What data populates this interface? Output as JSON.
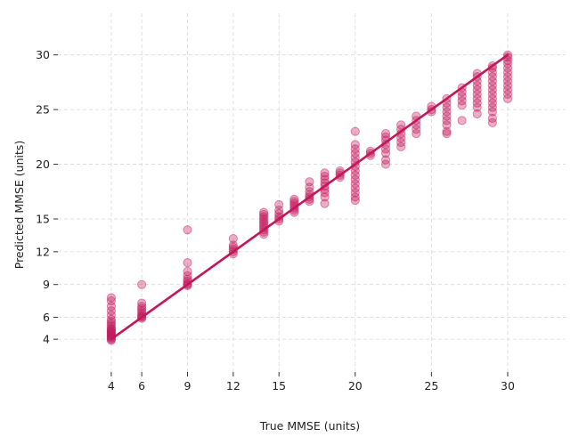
{
  "chart_data": {
    "type": "scatter",
    "title": "",
    "xlabel": "True MMSE (units)",
    "ylabel": "Predicted MMSE (units)",
    "xlim": [
      0.5,
      33.8
    ],
    "ylim": [
      1.0,
      33.8
    ],
    "xticks": [
      4,
      6,
      9,
      12,
      15,
      20,
      25,
      30
    ],
    "yticks": [
      4,
      6,
      9,
      12,
      15,
      20,
      25,
      30
    ],
    "grid": true,
    "color": "#c2185b",
    "series": [
      {
        "kind": "points",
        "points": [
          [
            4,
            3.9
          ],
          [
            4,
            4.0
          ],
          [
            4,
            4.1
          ],
          [
            4,
            4.2
          ],
          [
            4,
            4.3
          ],
          [
            4,
            4.4
          ],
          [
            4,
            4.5
          ],
          [
            4,
            4.6
          ],
          [
            4,
            4.7
          ],
          [
            4,
            4.8
          ],
          [
            4,
            4.9
          ],
          [
            4,
            5.0
          ],
          [
            4,
            5.2
          ],
          [
            4,
            5.4
          ],
          [
            4,
            5.6
          ],
          [
            4,
            5.8
          ],
          [
            4,
            6.2
          ],
          [
            4,
            6.6
          ],
          [
            4,
            7.0
          ],
          [
            4,
            7.5
          ],
          [
            4,
            7.8
          ],
          [
            6,
            5.9
          ],
          [
            6,
            6.0
          ],
          [
            6,
            6.1
          ],
          [
            6,
            6.2
          ],
          [
            6,
            6.4
          ],
          [
            6,
            6.6
          ],
          [
            6,
            6.8
          ],
          [
            6,
            7.0
          ],
          [
            6,
            7.3
          ],
          [
            6,
            9.0
          ],
          [
            9,
            8.9
          ],
          [
            9,
            9.0
          ],
          [
            9,
            9.1
          ],
          [
            9,
            9.3
          ],
          [
            9,
            9.5
          ],
          [
            9,
            9.8
          ],
          [
            9,
            10.2
          ],
          [
            9,
            11.0
          ],
          [
            9,
            14.0
          ],
          [
            12,
            11.8
          ],
          [
            12,
            12.0
          ],
          [
            12,
            12.2
          ],
          [
            12,
            12.4
          ],
          [
            12,
            12.6
          ],
          [
            12,
            13.2
          ],
          [
            14,
            13.6
          ],
          [
            14,
            13.8
          ],
          [
            14,
            14.0
          ],
          [
            14,
            14.2
          ],
          [
            14,
            14.4
          ],
          [
            14,
            14.6
          ],
          [
            14,
            14.8
          ],
          [
            14,
            15.0
          ],
          [
            14,
            15.2
          ],
          [
            14,
            15.4
          ],
          [
            14,
            15.6
          ],
          [
            15,
            14.8
          ],
          [
            15,
            15.0
          ],
          [
            15,
            15.2
          ],
          [
            15,
            15.5
          ],
          [
            15,
            15.8
          ],
          [
            15,
            16.3
          ],
          [
            16,
            15.6
          ],
          [
            16,
            15.8
          ],
          [
            16,
            16.0
          ],
          [
            16,
            16.2
          ],
          [
            16,
            16.4
          ],
          [
            16,
            16.6
          ],
          [
            16,
            16.8
          ],
          [
            17,
            16.6
          ],
          [
            17,
            16.8
          ],
          [
            17,
            17.0
          ],
          [
            17,
            17.2
          ],
          [
            17,
            17.5
          ],
          [
            17,
            17.9
          ],
          [
            17,
            18.4
          ],
          [
            18,
            16.4
          ],
          [
            18,
            17.0
          ],
          [
            18,
            17.4
          ],
          [
            18,
            17.7
          ],
          [
            18,
            18.0
          ],
          [
            18,
            18.3
          ],
          [
            18,
            18.6
          ],
          [
            18,
            18.9
          ],
          [
            18,
            19.2
          ],
          [
            19,
            18.8
          ],
          [
            19,
            19.0
          ],
          [
            19,
            19.2
          ],
          [
            19,
            19.4
          ],
          [
            20,
            16.7
          ],
          [
            20,
            17.0
          ],
          [
            20,
            17.4
          ],
          [
            20,
            17.8
          ],
          [
            20,
            18.2
          ],
          [
            20,
            18.6
          ],
          [
            20,
            19.0
          ],
          [
            20,
            19.4
          ],
          [
            20,
            19.8
          ],
          [
            20,
            20.2
          ],
          [
            20,
            20.6
          ],
          [
            20,
            21.0
          ],
          [
            20,
            21.4
          ],
          [
            20,
            21.8
          ],
          [
            20,
            23.0
          ],
          [
            21,
            20.8
          ],
          [
            21,
            21.0
          ],
          [
            21,
            21.2
          ],
          [
            22,
            20.0
          ],
          [
            22,
            20.4
          ],
          [
            22,
            21.0
          ],
          [
            22,
            21.4
          ],
          [
            22,
            21.8
          ],
          [
            22,
            22.2
          ],
          [
            22,
            22.5
          ],
          [
            22,
            22.8
          ],
          [
            23,
            21.6
          ],
          [
            23,
            22.0
          ],
          [
            23,
            22.4
          ],
          [
            23,
            22.8
          ],
          [
            23,
            23.2
          ],
          [
            23,
            23.6
          ],
          [
            24,
            22.8
          ],
          [
            24,
            23.2
          ],
          [
            24,
            23.6
          ],
          [
            24,
            24.0
          ],
          [
            24,
            24.4
          ],
          [
            25,
            24.8
          ],
          [
            25,
            25.0
          ],
          [
            25,
            25.3
          ],
          [
            26,
            22.8
          ],
          [
            26,
            23.0
          ],
          [
            26,
            23.6
          ],
          [
            26,
            24.0
          ],
          [
            26,
            24.4
          ],
          [
            26,
            24.8
          ],
          [
            26,
            25.2
          ],
          [
            26,
            25.6
          ],
          [
            26,
            26.0
          ],
          [
            27,
            24.0
          ],
          [
            27,
            25.4
          ],
          [
            27,
            25.8
          ],
          [
            27,
            26.2
          ],
          [
            27,
            26.6
          ],
          [
            27,
            27.0
          ],
          [
            28,
            24.6
          ],
          [
            28,
            25.2
          ],
          [
            28,
            25.6
          ],
          [
            28,
            26.0
          ],
          [
            28,
            26.4
          ],
          [
            28,
            26.8
          ],
          [
            28,
            27.2
          ],
          [
            28,
            27.6
          ],
          [
            28,
            28.0
          ],
          [
            28,
            28.3
          ],
          [
            29,
            23.8
          ],
          [
            29,
            24.2
          ],
          [
            29,
            24.8
          ],
          [
            29,
            25.2
          ],
          [
            29,
            25.6
          ],
          [
            29,
            26.0
          ],
          [
            29,
            26.4
          ],
          [
            29,
            26.8
          ],
          [
            29,
            27.2
          ],
          [
            29,
            27.6
          ],
          [
            29,
            28.0
          ],
          [
            29,
            28.4
          ],
          [
            29,
            28.8
          ],
          [
            29,
            29.0
          ],
          [
            30,
            26.0
          ],
          [
            30,
            26.4
          ],
          [
            30,
            26.8
          ],
          [
            30,
            27.2
          ],
          [
            30,
            27.6
          ],
          [
            30,
            28.0
          ],
          [
            30,
            28.4
          ],
          [
            30,
            28.8
          ],
          [
            30,
            29.2
          ],
          [
            30,
            29.5
          ],
          [
            30,
            29.8
          ],
          [
            30,
            30.0
          ]
        ]
      },
      {
        "kind": "line",
        "points": [
          [
            4,
            4
          ],
          [
            30,
            30
          ]
        ]
      }
    ]
  }
}
